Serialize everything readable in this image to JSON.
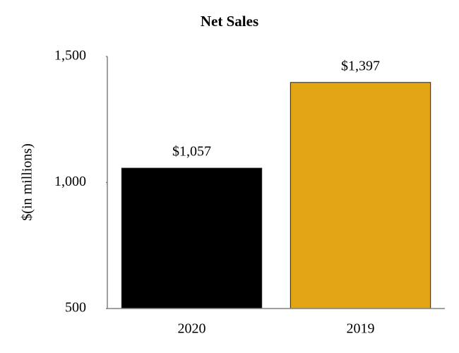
{
  "chart_data": {
    "type": "bar",
    "title": "Net Sales",
    "y_label": "$(in millions)",
    "categories": [
      "2020",
      "2019"
    ],
    "values": [
      1057,
      1397
    ],
    "value_labels": [
      "$1,057",
      "$1,397"
    ],
    "colors": [
      "#000000",
      "#e2a614"
    ],
    "ylim": [
      500,
      1500
    ],
    "yticks": [
      500,
      {
        "value": 1000,
        "label": "1,000"
      },
      {
        "value": 1500,
        "label": "1,500"
      }
    ],
    "grid": false
  }
}
